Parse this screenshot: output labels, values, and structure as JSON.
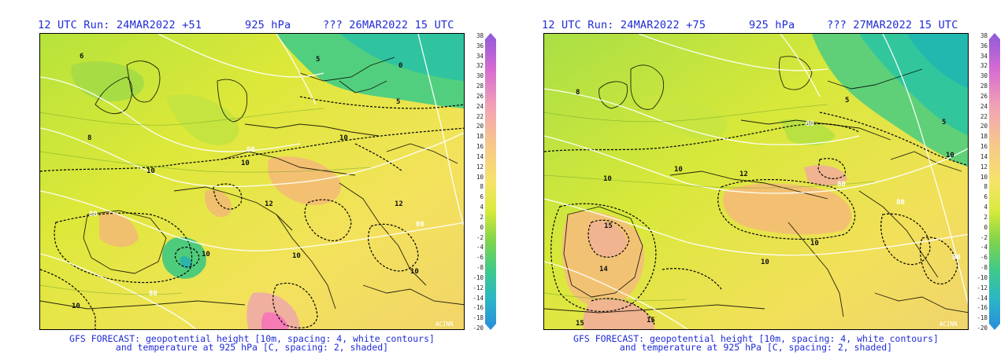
{
  "panels": [
    {
      "run_label": "12 UTC Run: 24MAR2022 +51",
      "level_label": "925 hPa",
      "valid_label": "??? 26MAR2022 15 UTC",
      "caption_line1": "GFS FORECAST: geopotential height [10m, spacing: 4, white contours]",
      "caption_line2": "and temperature at 925 hPa [C, spacing: 2, shaded]",
      "credit": "ACINN",
      "contour_labels": [
        "10",
        "10",
        "10",
        "10",
        "10",
        "10",
        "10",
        "5",
        "5",
        "0",
        "6",
        "8",
        "12",
        "12"
      ],
      "height_labels": [
        "80",
        "80",
        "80",
        "80"
      ]
    },
    {
      "run_label": "12 UTC Run: 24MAR2022 +75",
      "level_label": "925 hPa",
      "valid_label": "??? 27MAR2022 15 UTC",
      "caption_line1": "GFS FORECAST: geopotential height [10m, spacing: 4, white contours]",
      "caption_line2": "and temperature at 925 hPa [C, spacing: 2, shaded]",
      "credit": "ACINN",
      "contour_labels": [
        "10",
        "10",
        "10",
        "10",
        "10",
        "15",
        "15",
        "15",
        "5",
        "5",
        "8",
        "12",
        "14"
      ],
      "height_labels": [
        "80",
        "80",
        "80",
        "80"
      ]
    }
  ],
  "colorbar": {
    "ticks": [
      "38",
      "36",
      "34",
      "32",
      "30",
      "28",
      "26",
      "24",
      "22",
      "20",
      "18",
      "16",
      "14",
      "12",
      "10",
      "8",
      "6",
      "4",
      "2",
      "0",
      "-2",
      "-4",
      "-6",
      "-8",
      "-10",
      "-12",
      "-14",
      "-16",
      "-18",
      "-20"
    ],
    "colors": [
      "#8c5bd8",
      "#d56bd2",
      "#f2a3b4",
      "#f7c98a",
      "#f6e36a",
      "#d8ea3c",
      "#7fd44a",
      "#3fc98a",
      "#2bb5c7",
      "#2a8bdc"
    ]
  }
}
